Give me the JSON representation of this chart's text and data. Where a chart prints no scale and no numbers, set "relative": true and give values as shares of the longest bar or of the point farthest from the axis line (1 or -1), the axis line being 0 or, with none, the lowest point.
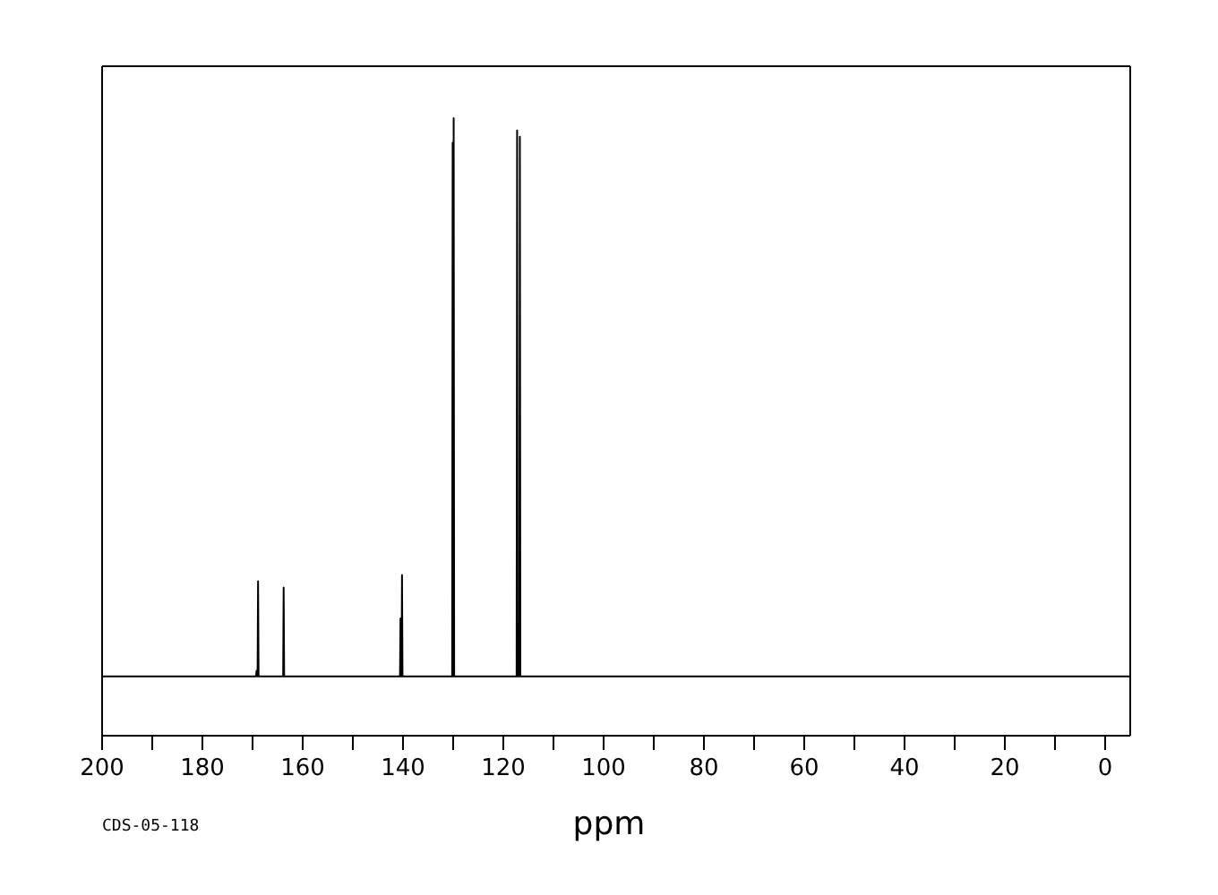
{
  "chart_data": {
    "type": "line",
    "relative": true,
    "xlabel": "ppm",
    "annotations": [
      "CDS-05-118"
    ],
    "xlim": [
      200,
      -5
    ],
    "xticks": [
      200,
      {
        "value": 190,
        "label": null
      },
      180,
      {
        "value": 170,
        "label": null
      },
      160,
      {
        "value": 150,
        "label": null
      },
      140,
      {
        "value": 130,
        "label": null
      },
      120,
      {
        "value": 110,
        "label": null
      },
      100,
      {
        "value": 90,
        "label": null
      },
      80,
      {
        "value": 70,
        "label": null
      },
      60,
      {
        "value": 50,
        "label": null
      },
      40,
      {
        "value": 30,
        "label": null
      },
      20,
      {
        "value": 10,
        "label": null
      },
      0
    ],
    "x": [
      200,
      169.3,
      169.2,
      169.0,
      168.9,
      168.8,
      163.9,
      163.8,
      163.7,
      140.6,
      140.5,
      140.4,
      140.3,
      140.2,
      140.1,
      130.2,
      130.1,
      130.0,
      129.9,
      129.8,
      117.35,
      117.25,
      117.15,
      117.05,
      117.0,
      116.9,
      116.8,
      116.7,
      116.6,
      -5
    ],
    "series": [
      {
        "color": "#000000",
        "values": [
          0.096,
          0.096,
          0.105,
          0.096,
          0.25,
          0.096,
          0.096,
          0.24,
          0.096,
          0.096,
          0.19,
          0.096,
          0.096,
          0.26,
          0.096,
          0.096,
          0.96,
          0.096,
          1,
          0.096,
          0.096,
          0.98,
          0.096,
          0.096,
          0.18,
          0.096,
          0.096,
          0.97,
          0.096,
          0.096
        ]
      }
    ],
    "grid": false,
    "legend": false,
    "marker": "none",
    "line_style": "solid"
  }
}
